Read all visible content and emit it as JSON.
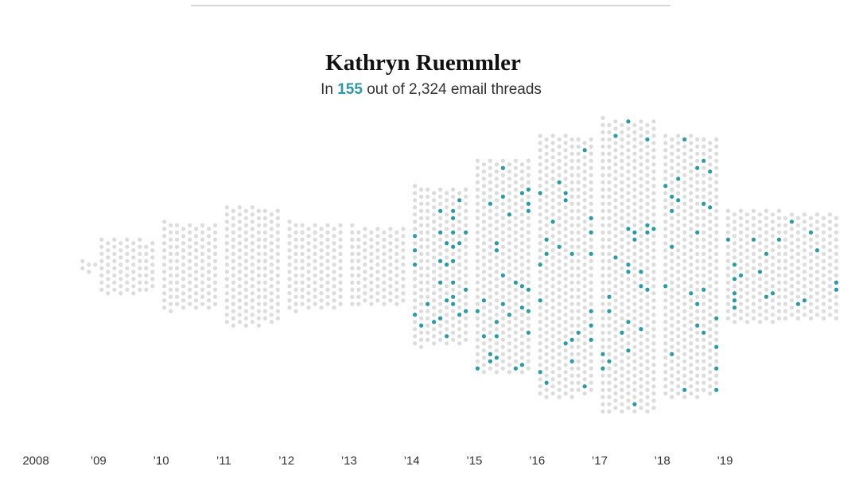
{
  "chart_data": {
    "type": "beeswarm",
    "title": "Kathryn Ruemmler",
    "subtitle": {
      "prefix": "In",
      "highlighted": 155,
      "middle": "out of",
      "total": {
        "value": 2324,
        "label": "2,324"
      },
      "suffix": "email threads"
    },
    "x": [
      2008,
      2009,
      2010,
      2011,
      2012,
      2013,
      2014,
      2015,
      2016,
      2017,
      2018,
      2019
    ],
    "series": [
      {
        "color": "#dcdcdc",
        "values": [
          5,
          70,
          110,
          150,
          110,
          100,
          170,
          240,
          305,
          345,
          305,
          259
        ]
      },
      {
        "color": "#2a9aa8",
        "values": [
          0,
          0,
          0,
          0,
          0,
          0,
          30,
          30,
          25,
          25,
          25,
          20
        ]
      }
    ],
    "xlim": [
      2007.6,
      2021
    ],
    "xticks": [
      {
        "value": 2008,
        "label": "2008"
      },
      {
        "value": 2009,
        "label": "’09"
      },
      {
        "value": 2010,
        "label": "’10"
      },
      {
        "value": 2011,
        "label": "’11"
      },
      {
        "value": 2012,
        "label": "’12"
      },
      {
        "value": 2013,
        "label": "’13"
      },
      {
        "value": 2014,
        "label": "’14"
      },
      {
        "value": 2015,
        "label": "’15"
      },
      {
        "value": 2016,
        "label": "’16"
      },
      {
        "value": 2017,
        "label": "’17"
      },
      {
        "value": 2018,
        "label": "’18"
      },
      {
        "value": 2019,
        "label": "’19"
      }
    ]
  }
}
